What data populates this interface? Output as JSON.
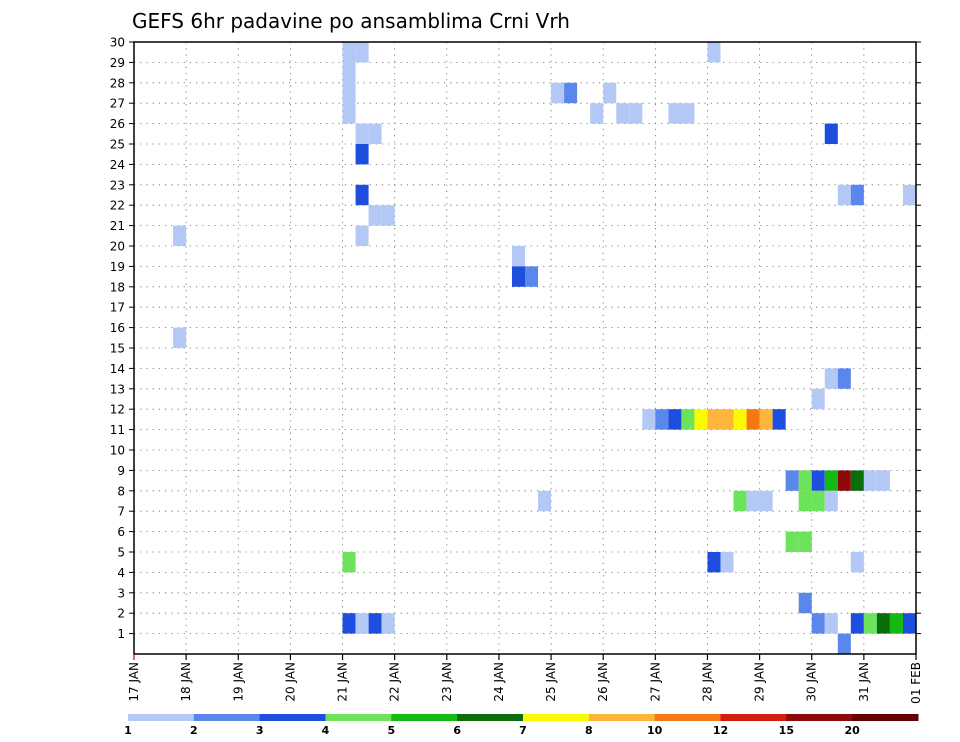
{
  "chart_data": {
    "type": "heatmap",
    "title": "GEFS 6hr padavine po ansamblima Crni Vrh",
    "y_ticks": [
      "1",
      "2",
      "3",
      "4",
      "5",
      "6",
      "7",
      "8",
      "9",
      "10",
      "11",
      "12",
      "13",
      "14",
      "15",
      "16",
      "17",
      "18",
      "19",
      "20",
      "21",
      "22",
      "23",
      "24",
      "25",
      "26",
      "27",
      "28",
      "29",
      "30"
    ],
    "x_ticks": [
      "17 JAN",
      "18 JAN",
      "19 JAN",
      "20 JAN",
      "21 JAN",
      "22 JAN",
      "23 JAN",
      "24 JAN",
      "25 JAN",
      "26 JAN",
      "27 JAN",
      "28 JAN",
      "29 JAN",
      "30 JAN",
      "31 JAN",
      "01 FEB"
    ],
    "x_range_days": [
      0,
      15
    ],
    "y_range": [
      0,
      30
    ],
    "grid": true,
    "legend_placement": "bottom",
    "legend": {
      "colors": [
        "#b4c8f5",
        "#5a87eb",
        "#1e4ede",
        "#6ce35a",
        "#14b914",
        "#0a6e0a",
        "#fafa00",
        "#ffb43c",
        "#f57814",
        "#d21e0a",
        "#8c0a0a",
        "#640000"
      ],
      "labels": [
        "1",
        "2",
        "3",
        "4",
        "5",
        "6",
        "7",
        "8",
        "10",
        "12",
        "15",
        "20"
      ]
    },
    "cells": [
      {
        "day": 4.0,
        "member": 30,
        "level": 1
      },
      {
        "day": 4.25,
        "member": 30,
        "level": 1
      },
      {
        "day": 4.0,
        "member": 29,
        "level": 1
      },
      {
        "day": 4.0,
        "member": 28,
        "level": 1
      },
      {
        "day": 4.0,
        "member": 27,
        "level": 1
      },
      {
        "day": 4.25,
        "member": 26,
        "level": 1
      },
      {
        "day": 4.5,
        "member": 26,
        "level": 1
      },
      {
        "day": 4.25,
        "member": 25,
        "level": 3
      },
      {
        "day": 4.25,
        "member": 23,
        "level": 3
      },
      {
        "day": 4.5,
        "member": 22,
        "level": 1
      },
      {
        "day": 4.75,
        "member": 22,
        "level": 1
      },
      {
        "day": 4.25,
        "member": 21,
        "level": 1
      },
      {
        "day": 0.75,
        "member": 21,
        "level": 1
      },
      {
        "day": 0.75,
        "member": 16,
        "level": 1
      },
      {
        "day": 7.25,
        "member": 20,
        "level": 1
      },
      {
        "day": 7.25,
        "member": 19,
        "level": 3
      },
      {
        "day": 7.5,
        "member": 19,
        "level": 2
      },
      {
        "day": 8.0,
        "member": 28,
        "level": 1
      },
      {
        "day": 8.25,
        "member": 28,
        "level": 2
      },
      {
        "day": 9.0,
        "member": 28,
        "level": 1
      },
      {
        "day": 8.75,
        "member": 27,
        "level": 1
      },
      {
        "day": 9.25,
        "member": 27,
        "level": 1
      },
      {
        "day": 9.5,
        "member": 27,
        "level": 1
      },
      {
        "day": 10.25,
        "member": 27,
        "level": 1
      },
      {
        "day": 10.5,
        "member": 27,
        "level": 1
      },
      {
        "day": 11.0,
        "member": 30,
        "level": 1
      },
      {
        "day": 13.25,
        "member": 26,
        "level": 3
      },
      {
        "day": 13.5,
        "member": 23,
        "level": 1
      },
      {
        "day": 13.75,
        "member": 23,
        "level": 2
      },
      {
        "day": 14.75,
        "member": 23,
        "level": 1
      },
      {
        "day": 13.25,
        "member": 14,
        "level": 1
      },
      {
        "day": 13.5,
        "member": 14,
        "level": 2
      },
      {
        "day": 13.0,
        "member": 13,
        "level": 1
      },
      {
        "day": 9.75,
        "member": 12,
        "level": 1
      },
      {
        "day": 10.0,
        "member": 12,
        "level": 2
      },
      {
        "day": 10.25,
        "member": 12,
        "level": 3
      },
      {
        "day": 10.5,
        "member": 12,
        "level": 4
      },
      {
        "day": 10.75,
        "member": 12,
        "level": 7
      },
      {
        "day": 11.0,
        "member": 12,
        "level": 8
      },
      {
        "day": 11.25,
        "member": 12,
        "level": 8
      },
      {
        "day": 11.5,
        "member": 12,
        "level": 7
      },
      {
        "day": 11.75,
        "member": 12,
        "level": 9
      },
      {
        "day": 12.0,
        "member": 12,
        "level": 8
      },
      {
        "day": 12.25,
        "member": 12,
        "level": 3
      },
      {
        "day": 12.5,
        "member": 9,
        "level": 2
      },
      {
        "day": 12.75,
        "member": 9,
        "level": 4
      },
      {
        "day": 13.0,
        "member": 9,
        "level": 3
      },
      {
        "day": 13.25,
        "member": 9,
        "level": 5
      },
      {
        "day": 13.5,
        "member": 9,
        "level": 11
      },
      {
        "day": 13.75,
        "member": 9,
        "level": 6
      },
      {
        "day": 14.0,
        "member": 9,
        "level": 1
      },
      {
        "day": 14.25,
        "member": 9,
        "level": 1
      },
      {
        "day": 11.5,
        "member": 8,
        "level": 4
      },
      {
        "day": 11.75,
        "member": 8,
        "level": 1
      },
      {
        "day": 12.0,
        "member": 8,
        "level": 1
      },
      {
        "day": 12.75,
        "member": 8,
        "level": 4
      },
      {
        "day": 13.0,
        "member": 8,
        "level": 4
      },
      {
        "day": 13.25,
        "member": 8,
        "level": 1
      },
      {
        "day": 7.75,
        "member": 8,
        "level": 1
      },
      {
        "day": 12.5,
        "member": 6,
        "level": 4
      },
      {
        "day": 12.75,
        "member": 6,
        "level": 4
      },
      {
        "day": 4.0,
        "member": 5,
        "level": 4
      },
      {
        "day": 11.0,
        "member": 5,
        "level": 3
      },
      {
        "day": 11.25,
        "member": 5,
        "level": 1
      },
      {
        "day": 13.75,
        "member": 5,
        "level": 1
      },
      {
        "day": 12.75,
        "member": 3,
        "level": 2
      },
      {
        "day": 4.0,
        "member": 2,
        "level": 3
      },
      {
        "day": 4.25,
        "member": 2,
        "level": 1
      },
      {
        "day": 4.5,
        "member": 2,
        "level": 3
      },
      {
        "day": 4.75,
        "member": 2,
        "level": 1
      },
      {
        "day": 13.0,
        "member": 2,
        "level": 2
      },
      {
        "day": 13.25,
        "member": 2,
        "level": 1
      },
      {
        "day": 13.75,
        "member": 2,
        "level": 3
      },
      {
        "day": 14.0,
        "member": 2,
        "level": 4
      },
      {
        "day": 14.25,
        "member": 2,
        "level": 6
      },
      {
        "day": 14.5,
        "member": 2,
        "level": 5
      },
      {
        "day": 14.75,
        "member": 2,
        "level": 3
      },
      {
        "day": 13.5,
        "member": 1,
        "level": 2
      }
    ]
  }
}
